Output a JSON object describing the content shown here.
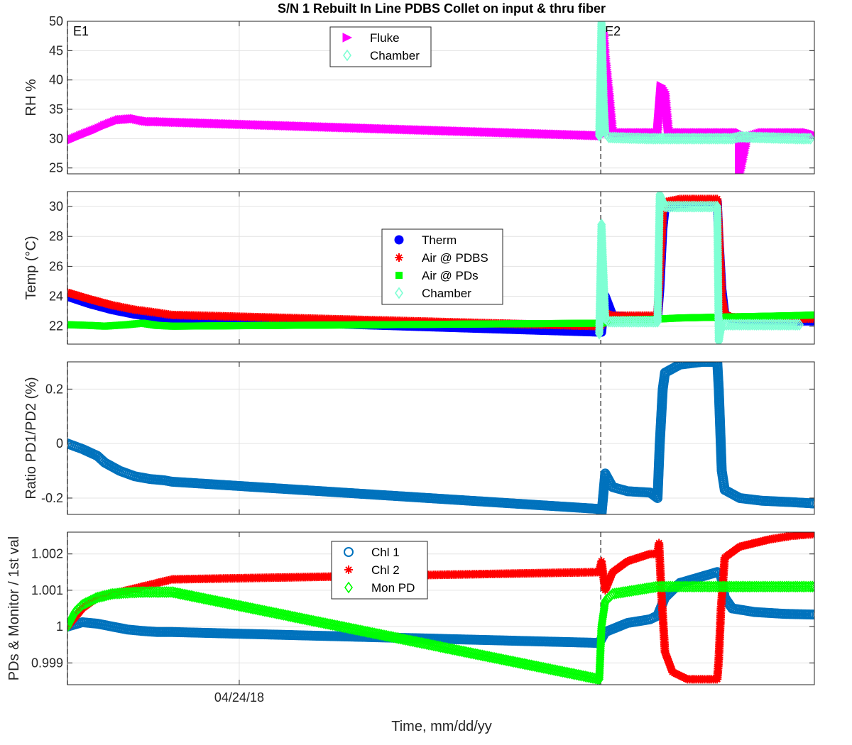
{
  "title": "S/N 1 Rebuilt In Line PDBS Collet on input & thru fiber",
  "xlabel": "Time, mm/dd/yy",
  "event_labels": [
    "E1",
    "E2"
  ],
  "chart_data": [
    {
      "type": "scatter",
      "ylabel": "RH %",
      "ylim": [
        24,
        50
      ],
      "yticks": [
        25,
        30,
        35,
        40,
        45,
        50
      ],
      "ytick_labels": [
        "25",
        "30",
        "35",
        "40",
        "45",
        "50"
      ],
      "grid": true,
      "legend_position": "top-center",
      "colors": {
        "fluke": "#ff00ff",
        "chamber": "#7fffd4"
      },
      "series": [
        {
          "name": "Fluke",
          "marker": "triangle-right",
          "color": "#ff00ff",
          "x": [
            0,
            0.02,
            0.04,
            0.05,
            0.07,
            0.09,
            0.1,
            0.11,
            0.12,
            0.14,
            0.715,
            0.718,
            0.72,
            0.725,
            0.73,
            0.75,
            0.77,
            0.79,
            0.795,
            0.8,
            0.805,
            0.82,
            0.85,
            0.87,
            0.88,
            0.9,
            0.9,
            0.91,
            0.93,
            0.96,
            0.99,
            1.0
          ],
          "y": [
            29.5,
            30.6,
            31.6,
            32.2,
            33.2,
            33.4,
            33.1,
            32.9,
            32.9,
            32.8,
            30.5,
            48,
            44,
            38,
            31,
            31,
            31,
            31,
            39,
            38,
            31,
            31,
            31,
            31,
            31,
            31,
            24,
            30.2,
            31,
            31,
            31,
            30.7
          ]
        },
        {
          "name": "Chamber",
          "marker": "diamond-open",
          "color": "#7fffd4",
          "x": [
            0.712,
            0.715,
            0.716,
            0.718,
            0.72,
            0.725,
            0.75,
            0.78,
            0.8,
            0.83,
            0.86,
            0.88,
            0.89,
            0.9,
            0.95,
            0.98,
            0.995
          ],
          "y": [
            30.5,
            50,
            45,
            36,
            31,
            30.2,
            30.1,
            30.0,
            30.0,
            30.0,
            30.0,
            30.0,
            30.0,
            30.3,
            30.1,
            30.0,
            30.0
          ]
        }
      ]
    },
    {
      "type": "scatter",
      "ylabel": "Temp (°C)",
      "ylim": [
        20.8,
        31
      ],
      "yticks": [
        22,
        24,
        26,
        28,
        30
      ],
      "ytick_labels": [
        "22",
        "24",
        "26",
        "28",
        "30"
      ],
      "grid": true,
      "legend_position": "center",
      "colors": {
        "therm": "#0000ff",
        "air_pdbs": "#ff0000",
        "air_pds": "#00ff00",
        "chamber": "#7fffd4"
      },
      "series": [
        {
          "name": "Therm",
          "marker": "circle-filled",
          "color": "#0000ff",
          "x": [
            0,
            0.03,
            0.06,
            0.09,
            0.12,
            0.14,
            0.715,
            0.72,
            0.73,
            0.75,
            0.78,
            0.79,
            0.793,
            0.797,
            0.8,
            0.82,
            0.85,
            0.87,
            0.872,
            0.876,
            0.88,
            0.89,
            0.93,
            0.97,
            1.0
          ],
          "y": [
            24.0,
            23.5,
            23.1,
            22.8,
            22.6,
            22.5,
            21.6,
            24.0,
            22.7,
            22.6,
            22.6,
            22.6,
            24.5,
            28.5,
            29.9,
            30.2,
            30.3,
            30.3,
            28.0,
            24.5,
            22.8,
            22.5,
            22.4,
            22.35,
            22.35
          ]
        },
        {
          "name": "Air @ PDBS",
          "marker": "asterisk",
          "color": "#ff0000",
          "x": [
            0,
            0.03,
            0.06,
            0.09,
            0.12,
            0.14,
            0.715,
            0.72,
            0.73,
            0.75,
            0.78,
            0.79,
            0.793,
            0.797,
            0.8,
            0.82,
            0.85,
            0.87,
            0.872,
            0.876,
            0.88,
            0.89,
            0.93,
            0.97,
            1.0
          ],
          "y": [
            24.25,
            23.8,
            23.4,
            23.1,
            22.9,
            22.75,
            22.0,
            22.9,
            22.7,
            22.7,
            22.7,
            22.7,
            25.5,
            29.5,
            30.3,
            30.5,
            30.5,
            30.5,
            28.5,
            24.0,
            22.8,
            22.6,
            22.55,
            22.5,
            22.5
          ]
        },
        {
          "name": "Air @ PDs",
          "marker": "square-filled",
          "color": "#00ff00",
          "x": [
            0,
            0.03,
            0.05,
            0.08,
            0.1,
            0.12,
            0.14,
            0.715,
            0.73,
            0.78,
            0.82,
            0.87,
            0.92,
            0.97,
            1.0
          ],
          "y": [
            22.1,
            22.05,
            22.0,
            22.1,
            22.2,
            22.05,
            22.0,
            22.2,
            22.4,
            22.45,
            22.55,
            22.6,
            22.65,
            22.7,
            22.75
          ]
        },
        {
          "name": "Chamber",
          "marker": "diamond-open",
          "color": "#7fffd4",
          "x": [
            0.712,
            0.715,
            0.72,
            0.725,
            0.75,
            0.78,
            0.79,
            0.793,
            0.8,
            0.82,
            0.86,
            0.87,
            0.872,
            0.876,
            0.88,
            0.92,
            0.95,
            0.98
          ],
          "y": [
            21.5,
            28.8,
            22.5,
            22.3,
            22.3,
            22.3,
            22.3,
            30.8,
            30.0,
            30.0,
            30.0,
            30.0,
            21.0,
            22.2,
            22.1,
            22.1,
            22.1,
            22.1
          ]
        }
      ]
    },
    {
      "type": "scatter",
      "ylabel": "Ratio PD1/PD2 (%)",
      "ylim": [
        -0.26,
        0.3
      ],
      "yticks": [
        -0.2,
        0,
        0.2
      ],
      "ytick_labels": [
        "-0.2",
        "0",
        "0.2"
      ],
      "grid": true,
      "series": [
        {
          "name": "",
          "marker": "circle-open",
          "color": "#0072bd",
          "x": [
            0,
            0.02,
            0.04,
            0.05,
            0.07,
            0.09,
            0.11,
            0.13,
            0.14,
            0.712,
            0.715,
            0.72,
            0.73,
            0.75,
            0.78,
            0.79,
            0.793,
            0.797,
            0.8,
            0.82,
            0.85,
            0.87,
            0.872,
            0.876,
            0.88,
            0.9,
            0.93,
            0.97,
            1.0
          ],
          "y": [
            0.0,
            -0.02,
            -0.045,
            -0.07,
            -0.1,
            -0.12,
            -0.13,
            -0.135,
            -0.14,
            -0.24,
            -0.26,
            -0.11,
            -0.16,
            -0.175,
            -0.18,
            -0.2,
            0.0,
            0.2,
            0.26,
            0.29,
            0.3,
            0.3,
            0.2,
            -0.1,
            -0.17,
            -0.2,
            -0.21,
            -0.215,
            -0.22
          ]
        }
      ]
    },
    {
      "type": "scatter",
      "ylabel": "PDs & Monitor / 1st val",
      "ylim": [
        0.9984,
        1.0026
      ],
      "yticks": [
        0.999,
        1.0,
        1.001,
        1.002
      ],
      "ytick_labels": [
        "0.999",
        "1",
        "1.001",
        "1.002"
      ],
      "xtick_labels": [
        "04/24/18"
      ],
      "xticks": [
        0.23
      ],
      "grid": true,
      "legend_position": "top-center",
      "colors": {
        "chl1": "#0072bd",
        "chl2": "#ff0000",
        "mon_pd": "#00ff00"
      },
      "series": [
        {
          "name": "Chl 1",
          "marker": "circle-open",
          "color": "#0072bd",
          "x": [
            0,
            0.02,
            0.04,
            0.06,
            0.08,
            0.1,
            0.12,
            0.14,
            0.712,
            0.72,
            0.75,
            0.78,
            0.79,
            0.8,
            0.82,
            0.87,
            0.875,
            0.88,
            0.89,
            0.92,
            0.96,
            1.0
          ],
          "y": [
            1.0,
            1.00012,
            1.00008,
            1.0,
            0.99992,
            0.99988,
            0.99985,
            0.99985,
            0.99955,
            0.99985,
            1.0001,
            1.0002,
            1.0003,
            1.0008,
            1.0012,
            1.0015,
            1.0014,
            1.0008,
            1.0005,
            1.0004,
            1.00035,
            1.00033
          ]
        },
        {
          "name": "Chl 2",
          "marker": "asterisk",
          "color": "#ff0000",
          "x": [
            0,
            0.02,
            0.04,
            0.06,
            0.08,
            0.1,
            0.12,
            0.14,
            0.712,
            0.715,
            0.72,
            0.73,
            0.75,
            0.78,
            0.79,
            0.792,
            0.795,
            0.8,
            0.81,
            0.83,
            0.87,
            0.872,
            0.875,
            0.88,
            0.9,
            0.94,
            0.97,
            1.0
          ],
          "y": [
            1.0,
            1.0005,
            1.0008,
            1.0009,
            1.001,
            1.0011,
            1.0012,
            1.0013,
            1.0015,
            1.0018,
            1.001,
            1.0015,
            1.0018,
            1.002,
            1.002,
            1.0023,
            1.001,
            0.9993,
            0.99875,
            0.99855,
            0.99855,
            0.9991,
            1.0005,
            1.0019,
            1.0022,
            1.0024,
            1.0025,
            1.00255
          ]
        },
        {
          "name": "Mon PD",
          "marker": "diamond-open",
          "color": "#00ff00",
          "x": [
            0,
            0.01,
            0.02,
            0.04,
            0.06,
            0.08,
            0.1,
            0.12,
            0.14,
            0.712,
            0.715,
            0.72,
            0.73,
            0.76,
            0.79,
            0.83,
            0.87,
            0.92,
            0.96,
            1.0
          ],
          "y": [
            1.0,
            1.0004,
            1.0006,
            1.0008,
            1.0009,
            1.00093,
            1.00095,
            1.00095,
            1.00095,
            0.99855,
            1.0,
            1.0007,
            1.0009,
            1.001,
            1.0011,
            1.0011,
            1.0011,
            1.0011,
            1.0011,
            1.0011
          ]
        }
      ]
    }
  ]
}
